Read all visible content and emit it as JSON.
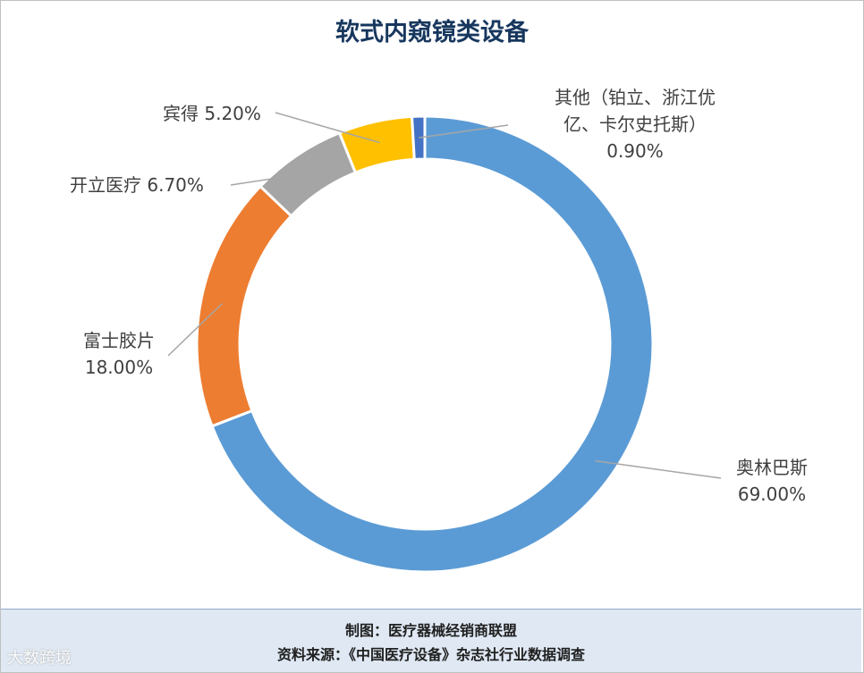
{
  "chart_data": {
    "type": "pie",
    "style": "donut",
    "title": "软式内窥镜类设备",
    "slices": [
      {
        "name": "奥林巴斯",
        "value": 69.0,
        "value_label": "69.00%",
        "color": "#5b9bd5"
      },
      {
        "name": "富士胶片",
        "value": 18.0,
        "value_label": "18.00%",
        "color": "#ed7d31"
      },
      {
        "name": "开立医疗",
        "value": 6.7,
        "value_label": "6.70%",
        "color": "#a5a5a5"
      },
      {
        "name": "宾得",
        "value": 5.2,
        "value_label": "5.20%",
        "color": "#ffc000"
      },
      {
        "name": "其他（铂立、浙江优亿、卡尔史托斯）",
        "value": 0.9,
        "value_label": "0.90%",
        "color": "#4472c4"
      }
    ]
  },
  "labels": {
    "olympus_name": "奥林巴斯",
    "olympus_pct": "69.00%",
    "fuji_name": "富士胶片",
    "fuji_pct": "18.00%",
    "sonoscape": "开立医疗 6.70%",
    "pentax": "宾得 5.20%",
    "other_line1": "其他（铂立、浙江优",
    "other_line2": "亿、卡尔史托斯）",
    "other_pct": "0.90%"
  },
  "footer": {
    "maker": "制图：医疗器械经销商联盟",
    "source": "资料来源：《中国医疗设备》杂志社行业数据调查"
  },
  "watermark": "大数跨境"
}
